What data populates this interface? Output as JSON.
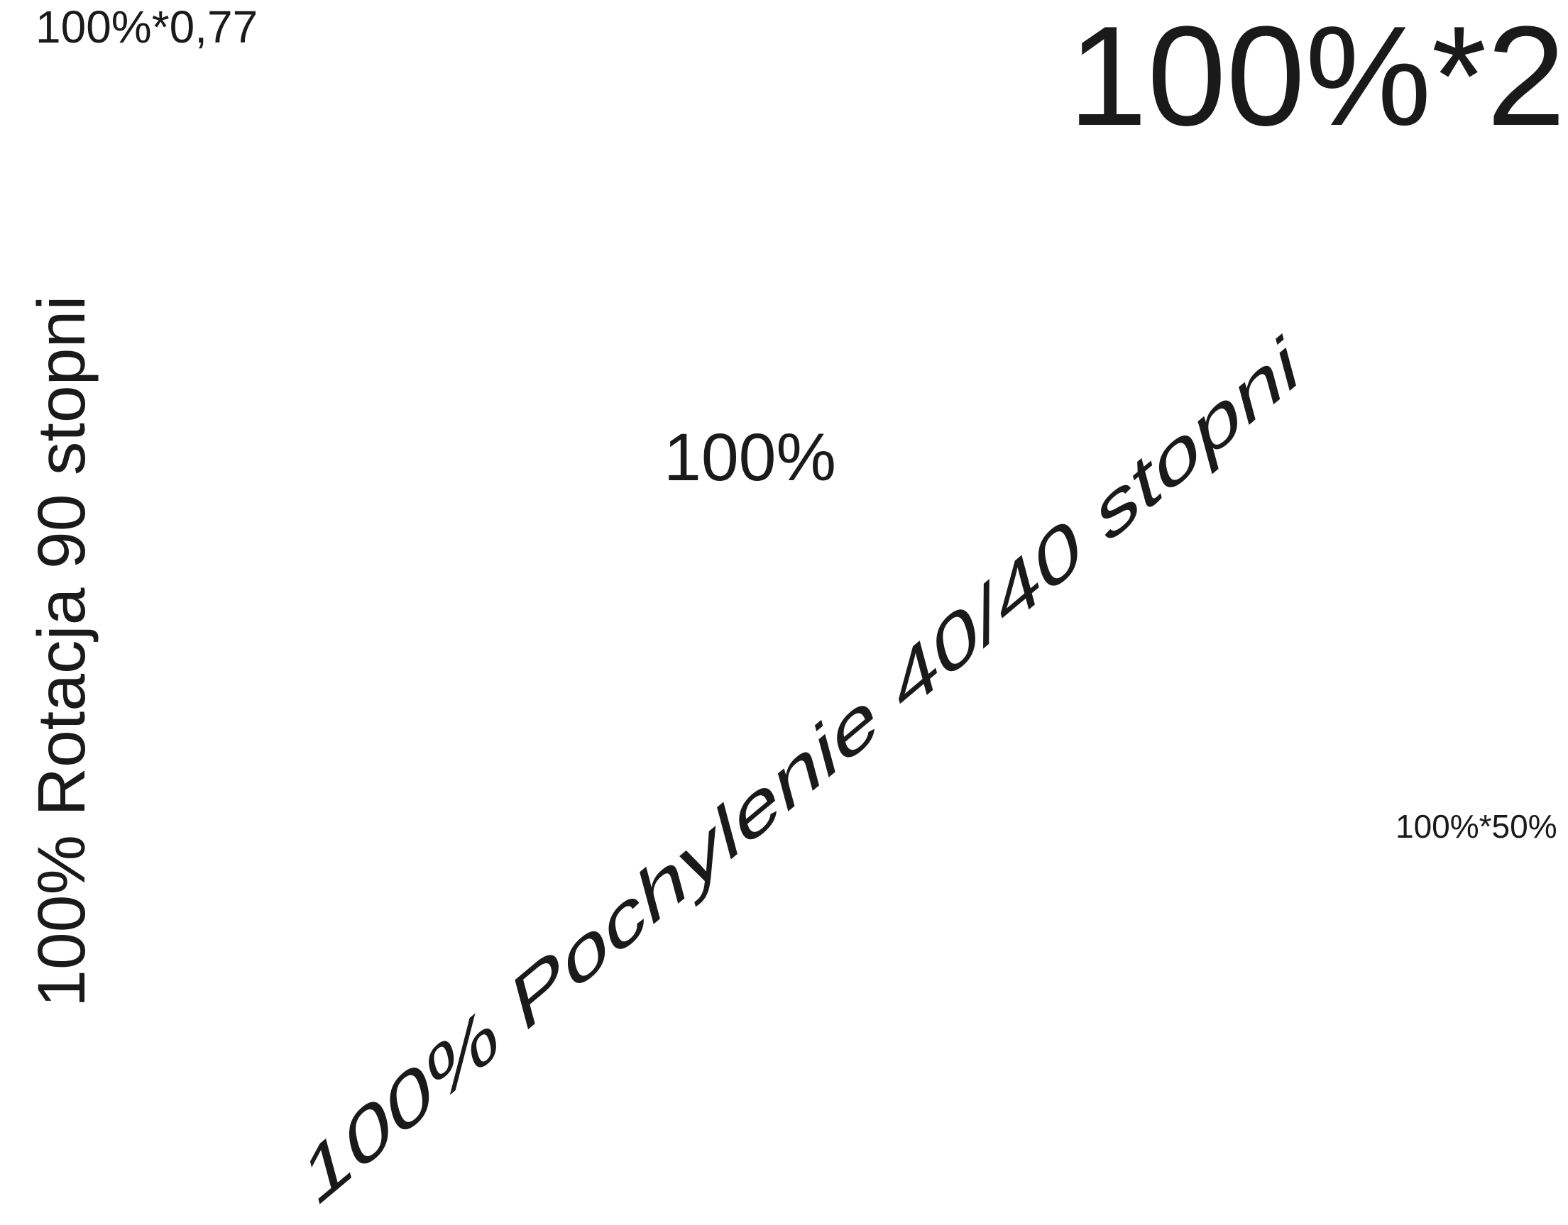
{
  "labels": {
    "scaled_small": "100%*0,77",
    "scaled_large": "100%*2",
    "normal": "100%",
    "scaled_half": "100%*50%",
    "rotated": "100% Rotacja 90 stopni",
    "skewed": "100% Pochylenie 40/40 stopni"
  },
  "colors": {
    "text": "#1a1a1a",
    "background": "#ffffff"
  }
}
